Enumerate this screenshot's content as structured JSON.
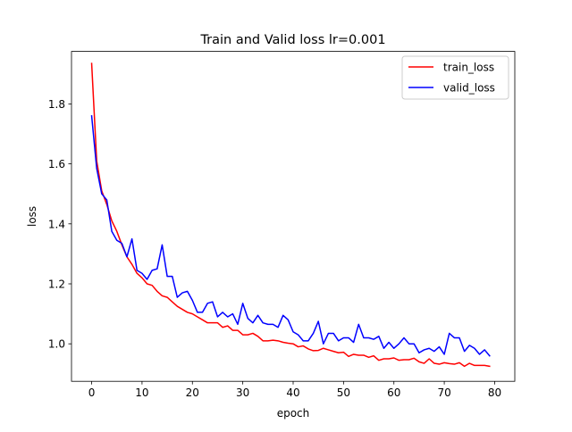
{
  "chart_data": {
    "type": "line",
    "title": "Train and Valid loss  lr=0.001",
    "xlabel": "epoch",
    "ylabel": "loss",
    "xlim": [
      -4,
      84
    ],
    "ylim": [
      0.875,
      1.975
    ],
    "xticks": [
      0,
      10,
      20,
      30,
      40,
      50,
      60,
      70,
      80
    ],
    "yticks": [
      1.0,
      1.2,
      1.4,
      1.6,
      1.8
    ],
    "xtick_labels": [
      "0",
      "10",
      "20",
      "30",
      "40",
      "50",
      "60",
      "70",
      "80"
    ],
    "ytick_labels": [
      "1.0",
      "1.2",
      "1.4",
      "1.6",
      "1.8"
    ],
    "grid": false,
    "legend_position": "top-right",
    "x": [
      0,
      1,
      2,
      3,
      4,
      5,
      6,
      7,
      8,
      9,
      10,
      11,
      12,
      13,
      14,
      15,
      16,
      17,
      18,
      19,
      20,
      21,
      22,
      23,
      24,
      25,
      26,
      27,
      28,
      29,
      30,
      31,
      32,
      33,
      34,
      35,
      36,
      37,
      38,
      39,
      40,
      41,
      42,
      43,
      44,
      45,
      46,
      47,
      48,
      49,
      50,
      51,
      52,
      53,
      54,
      55,
      56,
      57,
      58,
      59,
      60,
      61,
      62,
      63,
      64,
      65,
      66,
      67,
      68,
      69,
      70,
      71,
      72,
      73,
      74,
      75,
      76,
      77,
      78,
      79
    ],
    "series": [
      {
        "name": "train_loss",
        "color": "#ff0000",
        "values": [
          1.935,
          1.61,
          1.51,
          1.465,
          1.41,
          1.375,
          1.33,
          1.29,
          1.265,
          1.235,
          1.22,
          1.2,
          1.195,
          1.175,
          1.16,
          1.155,
          1.14,
          1.125,
          1.115,
          1.105,
          1.1,
          1.09,
          1.08,
          1.07,
          1.07,
          1.07,
          1.055,
          1.06,
          1.045,
          1.045,
          1.03,
          1.03,
          1.035,
          1.025,
          1.01,
          1.01,
          1.012,
          1.01,
          1.005,
          1.002,
          1.0,
          0.99,
          0.993,
          0.983,
          0.977,
          0.978,
          0.985,
          0.98,
          0.975,
          0.97,
          0.972,
          0.958,
          0.965,
          0.962,
          0.962,
          0.955,
          0.96,
          0.945,
          0.95,
          0.95,
          0.953,
          0.945,
          0.947,
          0.947,
          0.952,
          0.94,
          0.935,
          0.95,
          0.935,
          0.932,
          0.937,
          0.934,
          0.932,
          0.937,
          0.925,
          0.935,
          0.928,
          0.928,
          0.928,
          0.925
        ]
      },
      {
        "name": "valid_loss",
        "color": "#0000ff",
        "values": [
          1.76,
          1.585,
          1.5,
          1.48,
          1.375,
          1.345,
          1.335,
          1.29,
          1.35,
          1.245,
          1.235,
          1.215,
          1.245,
          1.25,
          1.33,
          1.225,
          1.225,
          1.155,
          1.17,
          1.175,
          1.145,
          1.105,
          1.105,
          1.135,
          1.14,
          1.09,
          1.105,
          1.09,
          1.1,
          1.065,
          1.135,
          1.085,
          1.07,
          1.095,
          1.07,
          1.065,
          1.065,
          1.055,
          1.095,
          1.08,
          1.04,
          1.03,
          1.01,
          1.01,
          1.035,
          1.075,
          1.0,
          1.035,
          1.035,
          1.01,
          1.02,
          1.02,
          1.005,
          1.065,
          1.02,
          1.02,
          1.015,
          1.025,
          0.985,
          1.005,
          0.985,
          1.0,
          1.02,
          1.0,
          1.0,
          0.97,
          0.98,
          0.985,
          0.975,
          0.99,
          0.965,
          1.035,
          1.02,
          1.02,
          0.975,
          0.995,
          0.985,
          0.965,
          0.98,
          0.96
        ]
      }
    ]
  }
}
